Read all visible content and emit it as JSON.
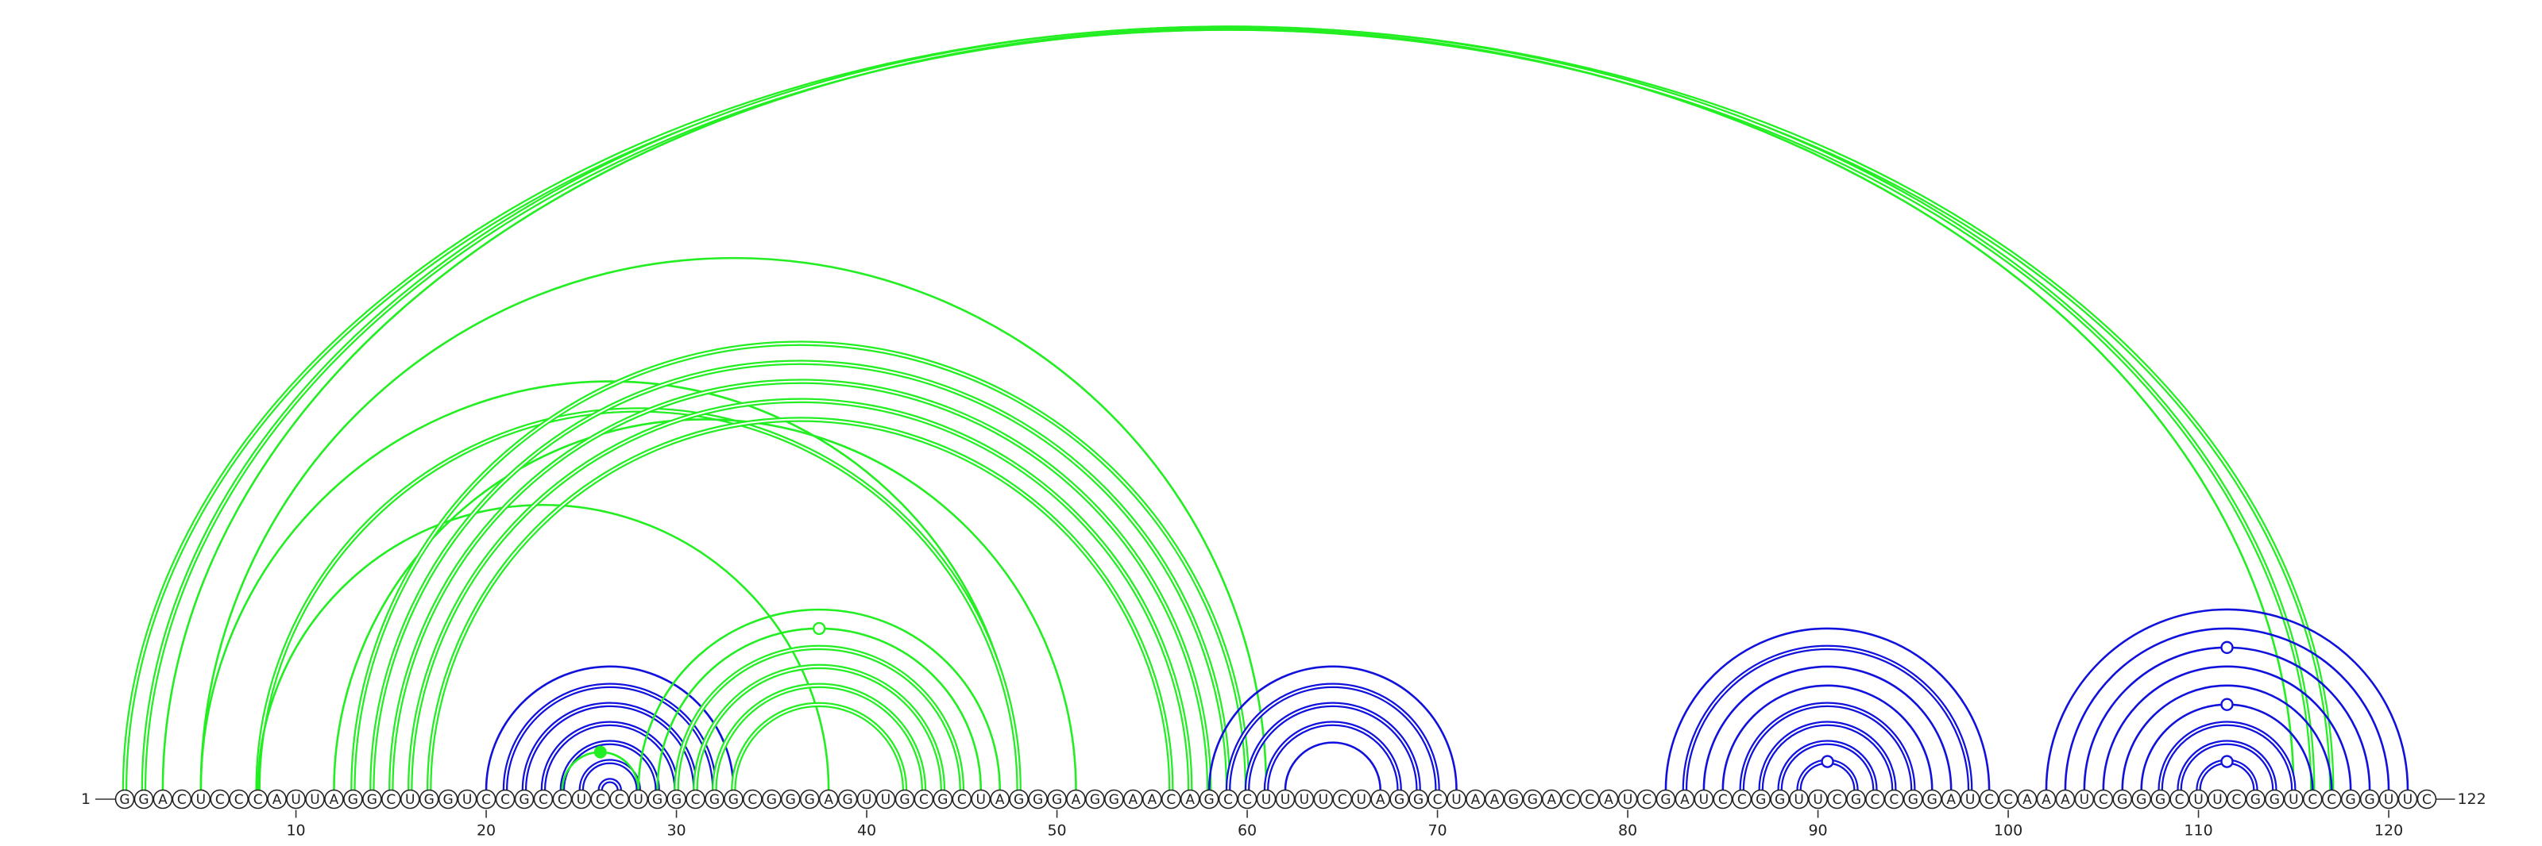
{
  "sequence": "GGACUCCCAUUAGGCUGGUCCGCCUCCUGGCGGCGGGAGUUGCGCUAGGGAGGAACAGCCUUUUCUAGGCUAAGGACCAUCGAUCCGGUUCGCCGGAUCCAAAUCGGGCUUCGGUCCGGUUC",
  "start_label": "1",
  "end_label": "122",
  "ticks": [
    10,
    20,
    30,
    40,
    50,
    60,
    70,
    80,
    90,
    100,
    110,
    120
  ],
  "colors": {
    "pseudoknot": "#22ee22",
    "nested": "#1111dd",
    "base_stroke": "#222222"
  },
  "chart_data": {
    "type": "arc-diagram",
    "length": 122,
    "arcs": [
      {
        "i": 1,
        "j": 117,
        "color": "pseudoknot",
        "lines": 2
      },
      {
        "i": 2,
        "j": 116,
        "color": "pseudoknot",
        "lines": 2
      },
      {
        "i": 3,
        "j": 115,
        "color": "pseudoknot",
        "lines": 1
      },
      {
        "i": 5,
        "j": 61,
        "color": "pseudoknot",
        "lines": 1
      },
      {
        "i": 5,
        "j": 48,
        "color": "pseudoknot",
        "lines": 1
      },
      {
        "i": 8,
        "j": 48,
        "color": "pseudoknot",
        "lines": 2
      },
      {
        "i": 8,
        "j": 38,
        "color": "pseudoknot",
        "lines": 1
      },
      {
        "i": 12,
        "j": 51,
        "color": "pseudoknot",
        "lines": 1
      },
      {
        "i": 13,
        "j": 60,
        "color": "pseudoknot",
        "lines": 2
      },
      {
        "i": 14,
        "j": 59,
        "color": "pseudoknot",
        "lines": 2
      },
      {
        "i": 15,
        "j": 58,
        "color": "pseudoknot",
        "lines": 2
      },
      {
        "i": 16,
        "j": 57,
        "color": "pseudoknot",
        "lines": 2
      },
      {
        "i": 17,
        "j": 56,
        "color": "pseudoknot",
        "lines": 2
      },
      {
        "i": 20,
        "j": 33,
        "color": "nested",
        "lines": 1
      },
      {
        "i": 21,
        "j": 32,
        "color": "nested",
        "lines": 2
      },
      {
        "i": 22,
        "j": 31,
        "color": "nested",
        "lines": 2
      },
      {
        "i": 23,
        "j": 30,
        "color": "nested",
        "lines": 2
      },
      {
        "i": 24,
        "j": 29,
        "color": "nested",
        "lines": 2
      },
      {
        "i": 25,
        "j": 28,
        "color": "nested",
        "lines": 2
      },
      {
        "i": 26,
        "j": 27,
        "color": "nested",
        "lines": 2
      },
      {
        "i": 24,
        "j": 28,
        "color": "pseudoknot",
        "lines": 1,
        "marker": "filled"
      },
      {
        "i": 28,
        "j": 47,
        "color": "pseudoknot",
        "lines": 1
      },
      {
        "i": 29,
        "j": 46,
        "color": "pseudoknot",
        "lines": 1,
        "marker": "open"
      },
      {
        "i": 30,
        "j": 45,
        "color": "pseudoknot",
        "lines": 2
      },
      {
        "i": 31,
        "j": 44,
        "color": "pseudoknot",
        "lines": 2
      },
      {
        "i": 32,
        "j": 43,
        "color": "pseudoknot",
        "lines": 2
      },
      {
        "i": 33,
        "j": 42,
        "color": "pseudoknot",
        "lines": 2
      },
      {
        "i": 58,
        "j": 71,
        "color": "nested",
        "lines": 1
      },
      {
        "i": 59,
        "j": 70,
        "color": "nested",
        "lines": 2
      },
      {
        "i": 60,
        "j": 69,
        "color": "nested",
        "lines": 2
      },
      {
        "i": 61,
        "j": 68,
        "color": "nested",
        "lines": 2
      },
      {
        "i": 62,
        "j": 67,
        "color": "nested",
        "lines": 1
      },
      {
        "i": 82,
        "j": 99,
        "color": "nested",
        "lines": 1
      },
      {
        "i": 83,
        "j": 98,
        "color": "nested",
        "lines": 2
      },
      {
        "i": 84,
        "j": 97,
        "color": "nested",
        "lines": 1
      },
      {
        "i": 85,
        "j": 96,
        "color": "nested",
        "lines": 1
      },
      {
        "i": 86,
        "j": 95,
        "color": "nested",
        "lines": 2
      },
      {
        "i": 87,
        "j": 94,
        "color": "nested",
        "lines": 2
      },
      {
        "i": 88,
        "j": 93,
        "color": "nested",
        "lines": 2
      },
      {
        "i": 89,
        "j": 92,
        "color": "nested",
        "lines": 2,
        "marker": "open"
      },
      {
        "i": 102,
        "j": 121,
        "color": "nested",
        "lines": 1
      },
      {
        "i": 103,
        "j": 120,
        "color": "nested",
        "lines": 1
      },
      {
        "i": 104,
        "j": 119,
        "color": "nested",
        "lines": 1,
        "marker": "open"
      },
      {
        "i": 105,
        "j": 118,
        "color": "nested",
        "lines": 1
      },
      {
        "i": 106,
        "j": 117,
        "color": "nested",
        "lines": 1
      },
      {
        "i": 107,
        "j": 116,
        "color": "nested",
        "lines": 1,
        "marker": "open"
      },
      {
        "i": 108,
        "j": 115,
        "color": "nested",
        "lines": 2
      },
      {
        "i": 109,
        "j": 114,
        "color": "nested",
        "lines": 2
      },
      {
        "i": 110,
        "j": 113,
        "color": "nested",
        "lines": 2,
        "marker": "open"
      }
    ]
  }
}
